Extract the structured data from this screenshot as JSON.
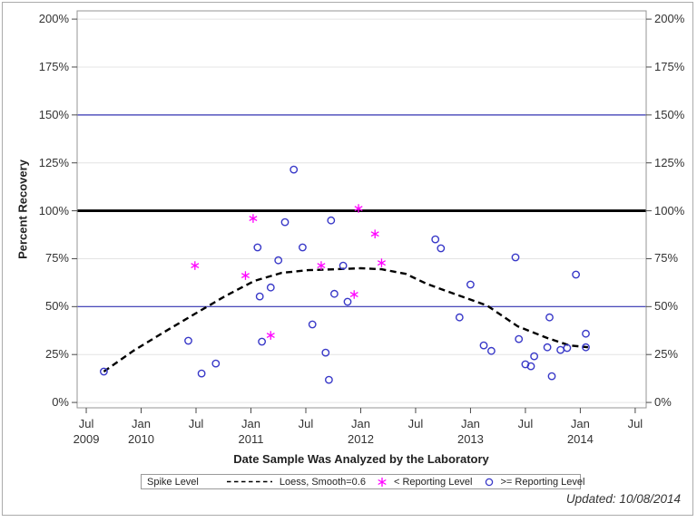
{
  "figure": {
    "updated_note": "Updated: 10/08/2014"
  },
  "chart_data": {
    "type": "scatter",
    "title": "",
    "xlabel": "Date Sample Was Analyzed by the Laboratory",
    "ylabel": "Percent Recovery",
    "legend_title": "Spike Level",
    "x_range": [
      2009.417,
      2014.6
    ],
    "y_range": [
      -2.8,
      204.3
    ],
    "grid": "horizontal-only",
    "x_ticks": [
      {
        "value": 2009.5,
        "line1": "Jul",
        "line2": "2009"
      },
      {
        "value": 2010.0,
        "line1": "Jan",
        "line2": "2010"
      },
      {
        "value": 2010.5,
        "line1": "Jul",
        "line2": ""
      },
      {
        "value": 2011.0,
        "line1": "Jan",
        "line2": "2011"
      },
      {
        "value": 2011.5,
        "line1": "Jul",
        "line2": ""
      },
      {
        "value": 2012.0,
        "line1": "Jan",
        "line2": "2012"
      },
      {
        "value": 2012.5,
        "line1": "Jul",
        "line2": ""
      },
      {
        "value": 2013.0,
        "line1": "Jan",
        "line2": "2013"
      },
      {
        "value": 2013.5,
        "line1": "Jul",
        "line2": ""
      },
      {
        "value": 2014.0,
        "line1": "Jan",
        "line2": "2014"
      },
      {
        "value": 2014.5,
        "line1": "Jul",
        "line2": ""
      }
    ],
    "y_ticks": [
      {
        "value": 0,
        "label": "0%"
      },
      {
        "value": 25,
        "label": "25%"
      },
      {
        "value": 50,
        "label": "50%"
      },
      {
        "value": 75,
        "label": "75%"
      },
      {
        "value": 100,
        "label": "100%"
      },
      {
        "value": 125,
        "label": "125%"
      },
      {
        "value": 150,
        "label": "150%"
      },
      {
        "value": 175,
        "label": "175%"
      },
      {
        "value": 200,
        "label": "200%"
      }
    ],
    "reference_lines": [
      {
        "name": "reference-line-150",
        "y": 150,
        "color": "#3333B3",
        "width": 1.2
      },
      {
        "name": "reference-line-50",
        "y": 50,
        "color": "#3333B3",
        "width": 1.2
      },
      {
        "name": "spike-level-line",
        "y": 100,
        "color": "#000000",
        "width": 2.8
      }
    ],
    "series": [
      {
        "name": "Loess, Smooth=0.6",
        "type": "line",
        "dashed": true,
        "color": "#000000",
        "points": [
          [
            2009.66,
            16.1
          ],
          [
            2009.93,
            27.0
          ],
          [
            2010.2,
            36.4
          ],
          [
            2010.48,
            45.9
          ],
          [
            2010.76,
            55.3
          ],
          [
            2011.03,
            63.4
          ],
          [
            2011.28,
            67.6
          ],
          [
            2011.52,
            69.0
          ],
          [
            2011.77,
            69.5
          ],
          [
            2012.0,
            70.0
          ],
          [
            2012.19,
            69.5
          ],
          [
            2012.41,
            67.1
          ],
          [
            2012.6,
            61.9
          ],
          [
            2012.87,
            56.3
          ],
          [
            2013.15,
            50.6
          ],
          [
            2013.43,
            39.7
          ],
          [
            2013.7,
            33.6
          ],
          [
            2013.9,
            29.8
          ],
          [
            2014.07,
            28.8
          ]
        ]
      },
      {
        "name": "< Reporting Level",
        "type": "scatter",
        "marker": "asterisk",
        "color": "#FF00FF",
        "points": [
          [
            2010.49,
            71.4
          ],
          [
            2010.95,
            66.2
          ],
          [
            2011.02,
            96.0
          ],
          [
            2011.18,
            35.0
          ],
          [
            2011.64,
            71.4
          ],
          [
            2011.94,
            56.3
          ],
          [
            2011.98,
            101.2
          ],
          [
            2012.13,
            87.9
          ],
          [
            2012.19,
            72.8
          ]
        ]
      },
      {
        "name": ">= Reporting Level",
        "type": "scatter",
        "marker": "circle",
        "color": "#3838C8",
        "points": [
          [
            2009.66,
            16.1
          ],
          [
            2010.43,
            32.2
          ],
          [
            2010.55,
            15.1
          ],
          [
            2010.68,
            20.3
          ],
          [
            2011.06,
            80.9
          ],
          [
            2011.08,
            55.3
          ],
          [
            2011.1,
            31.7
          ],
          [
            2011.18,
            60.0
          ],
          [
            2011.25,
            74.2
          ],
          [
            2011.31,
            94.1
          ],
          [
            2011.39,
            121.5
          ],
          [
            2011.47,
            80.9
          ],
          [
            2011.56,
            40.7
          ],
          [
            2011.68,
            26.0
          ],
          [
            2011.71,
            11.8
          ],
          [
            2011.73,
            95.0
          ],
          [
            2011.76,
            56.7
          ],
          [
            2011.84,
            71.4
          ],
          [
            2011.88,
            52.5
          ],
          [
            2012.68,
            85.1
          ],
          [
            2012.73,
            80.4
          ],
          [
            2012.9,
            44.4
          ],
          [
            2013.0,
            61.5
          ],
          [
            2013.12,
            29.8
          ],
          [
            2013.19,
            26.9
          ],
          [
            2013.41,
            75.7
          ],
          [
            2013.44,
            33.1
          ],
          [
            2013.5,
            19.9
          ],
          [
            2013.55,
            18.9
          ],
          [
            2013.58,
            24.1
          ],
          [
            2013.7,
            28.8
          ],
          [
            2013.72,
            44.4
          ],
          [
            2013.74,
            13.7
          ],
          [
            2013.82,
            27.4
          ],
          [
            2013.88,
            28.4
          ],
          [
            2013.96,
            66.7
          ],
          [
            2014.05,
            35.9
          ],
          [
            2014.05,
            28.8
          ]
        ]
      }
    ],
    "colors": {
      "grid": "#E4E4E4",
      "frame": "#949494",
      "tick": "#4A4A4A",
      "background": "#FFFFFF"
    }
  }
}
